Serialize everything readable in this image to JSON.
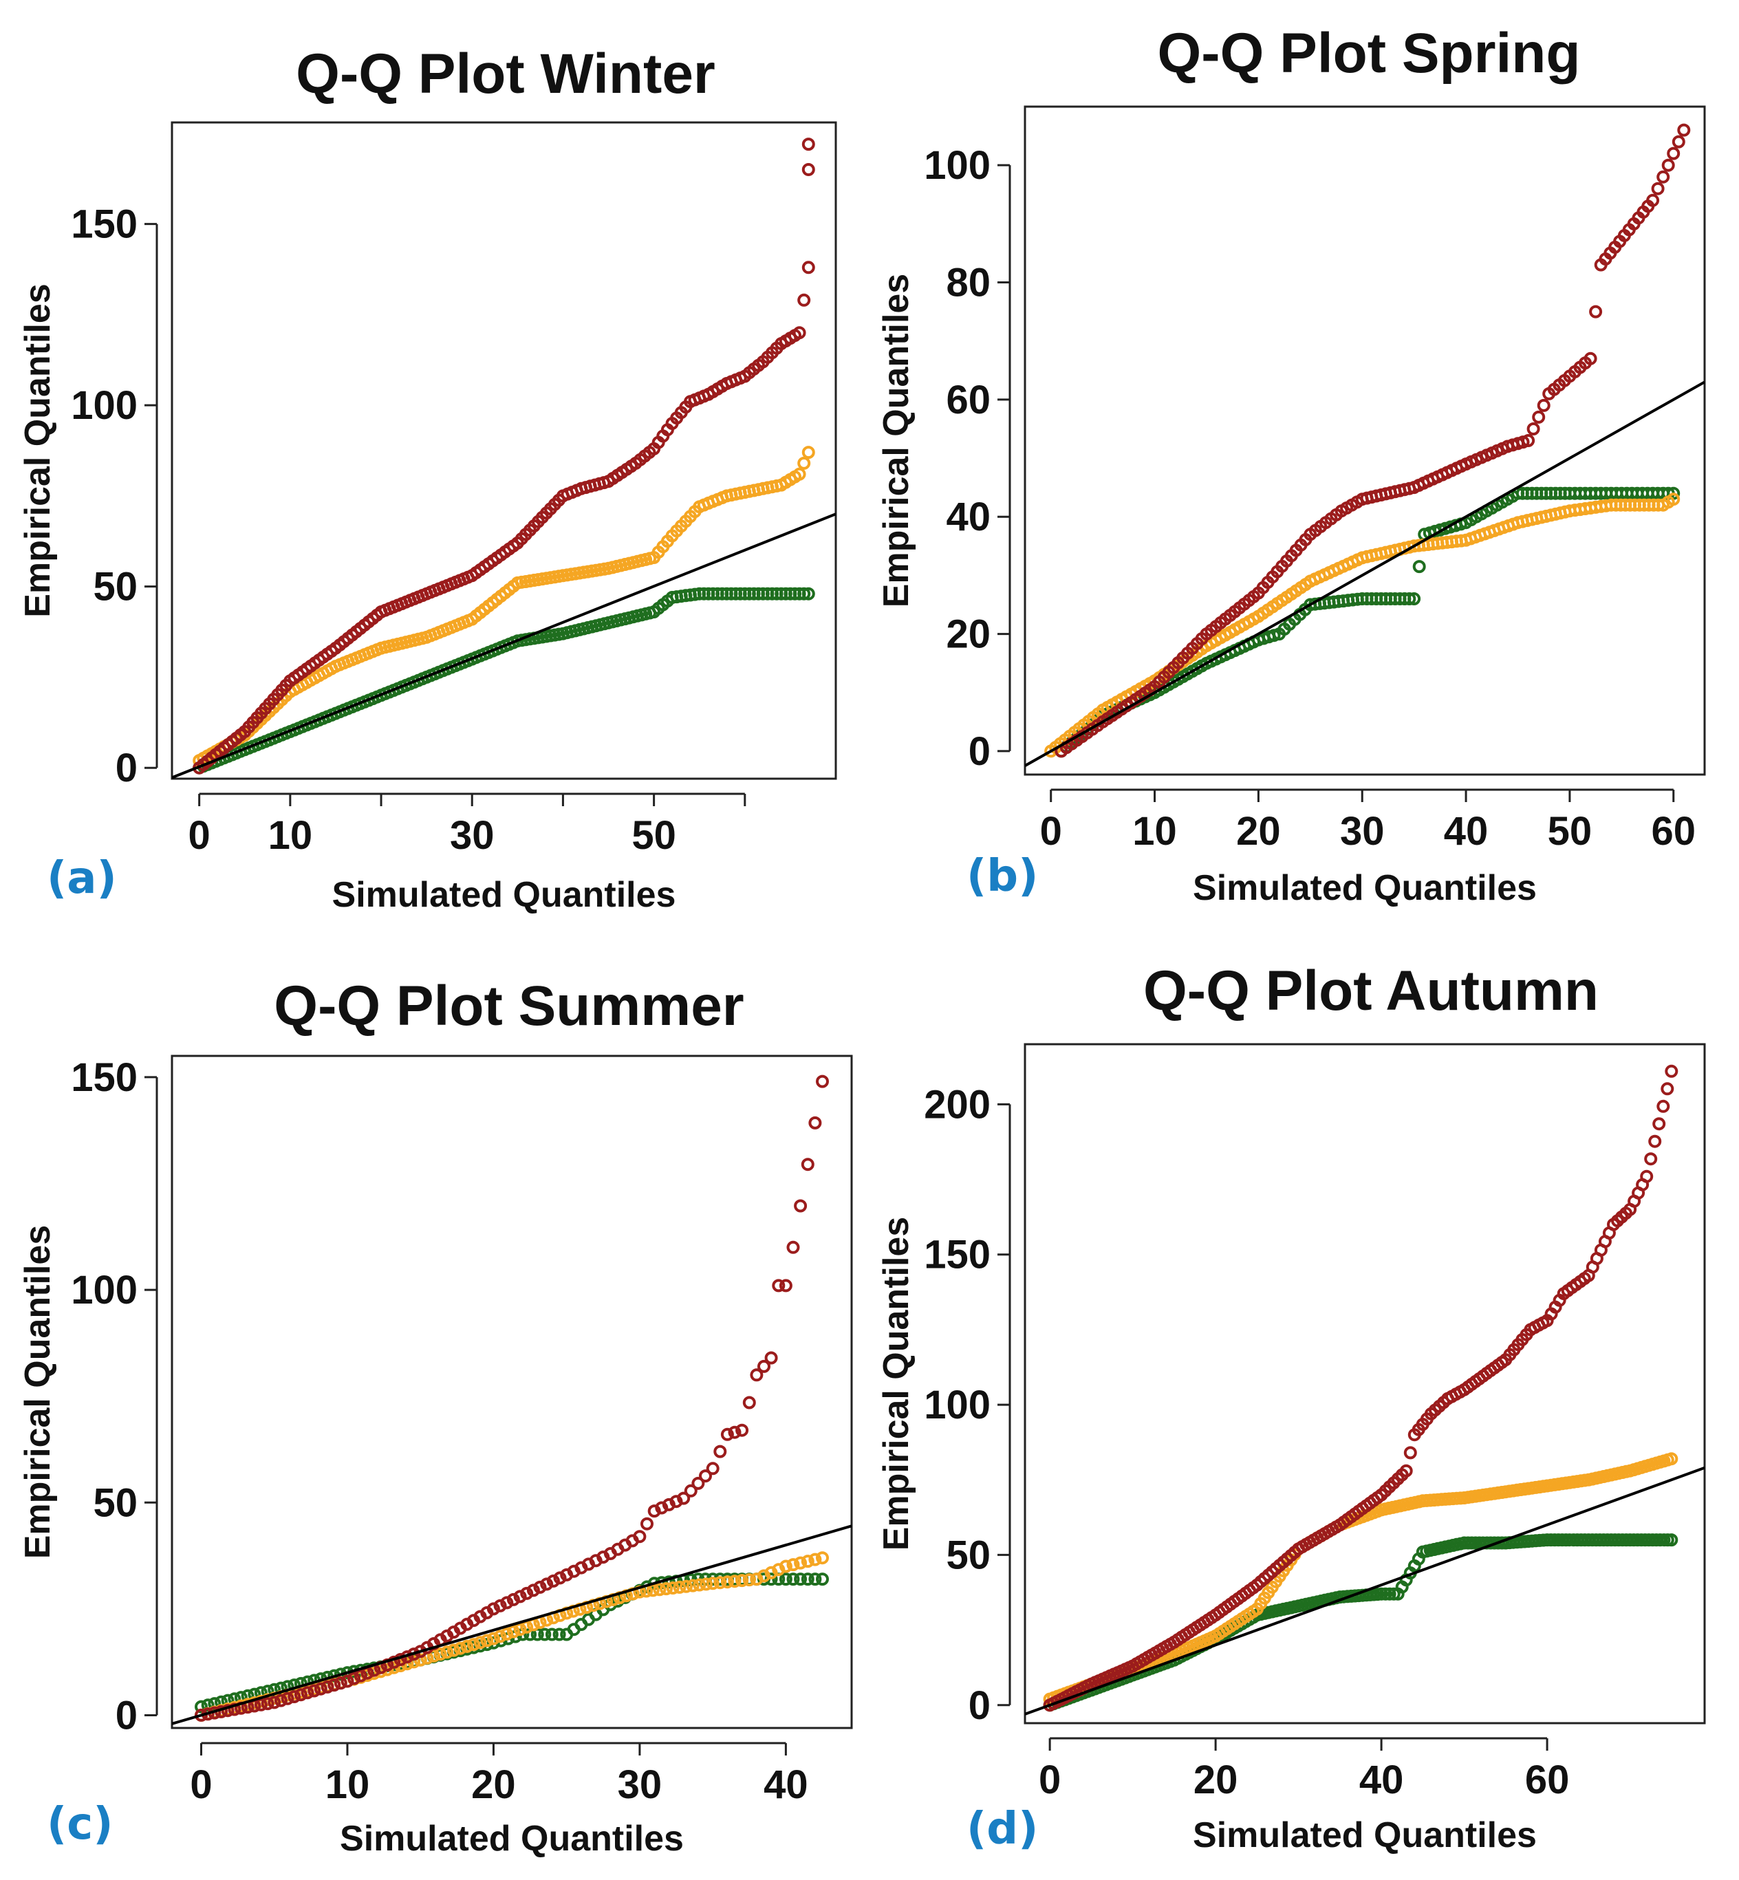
{
  "colors": {
    "dark_red": "#9b1c1c",
    "orange": "#f5a623",
    "green": "#1f6e1f",
    "reference_line": "#000000",
    "panel_letter": "#1a7fc4"
  },
  "chart_data": [
    {
      "type": "scatter",
      "panel": "(a)",
      "title": "Q-Q Plot Winter",
      "xlabel": "Simulated Quantiles",
      "ylabel": "Empirical Quantiles",
      "xlim": [
        -3,
        70
      ],
      "ylim": [
        -3,
        178
      ],
      "xticks": [
        0,
        10,
        20,
        30,
        40,
        50,
        60
      ],
      "xtick_labels": [
        "0",
        "10",
        "",
        "30",
        "",
        "50",
        ""
      ],
      "yticks": [
        0,
        50,
        100,
        150
      ],
      "ytick_labels": [
        "0",
        "50",
        "100",
        "150"
      ],
      "reference_line": [
        [
          -3,
          -2.7
        ],
        [
          70,
          70
        ]
      ],
      "series": [
        {
          "name": "dark red",
          "color_key": "dark_red",
          "x": [
            0,
            5,
            10,
            15,
            20,
            25,
            30,
            35,
            40,
            42,
            45,
            48,
            50,
            52,
            54,
            56,
            58,
            60,
            62,
            64,
            66,
            67,
            67,
            67
          ],
          "y": [
            0,
            10,
            24,
            33,
            43,
            48,
            53,
            62,
            75,
            77,
            79,
            84,
            88,
            95,
            101,
            103,
            106,
            108,
            112,
            117,
            120,
            138,
            165,
            172
          ]
        },
        {
          "name": "orange",
          "color_key": "orange",
          "x": [
            0,
            5,
            10,
            15,
            20,
            25,
            30,
            35,
            40,
            45,
            50,
            52,
            55,
            58,
            60,
            62,
            64,
            66,
            67
          ],
          "y": [
            2,
            9,
            21,
            28,
            33,
            36,
            41,
            51,
            53,
            55,
            58,
            64,
            72,
            75,
            76,
            77,
            78,
            81,
            87
          ]
        },
        {
          "name": "green",
          "color_key": "green",
          "x": [
            0,
            5,
            10,
            15,
            20,
            25,
            30,
            35,
            40,
            45,
            50,
            52,
            55,
            58,
            61,
            63,
            65,
            67
          ],
          "y": [
            0,
            5,
            10,
            15,
            20,
            25,
            30,
            35,
            37,
            40,
            43,
            47,
            48,
            48,
            48,
            48,
            48,
            48
          ]
        }
      ]
    },
    {
      "type": "scatter",
      "panel": "(b)",
      "title": "Q-Q Plot Spring",
      "xlabel": "Simulated Quantiles",
      "ylabel": "Empirical Quantiles",
      "xlim": [
        -2.5,
        63
      ],
      "ylim": [
        -4,
        110
      ],
      "xticks": [
        0,
        10,
        20,
        30,
        40,
        50,
        60
      ],
      "xtick_labels": [
        "0",
        "10",
        "20",
        "30",
        "40",
        "50",
        "60"
      ],
      "yticks": [
        0,
        20,
        40,
        60,
        80,
        100
      ],
      "ytick_labels": [
        "0",
        "20",
        "40",
        "60",
        "80",
        "100"
      ],
      "reference_line": [
        [
          -2.5,
          -2.5
        ],
        [
          63,
          63
        ]
      ],
      "series": [
        {
          "name": "dark red",
          "color_key": "dark_red",
          "x": [
            1,
            5,
            10,
            15,
            20,
            25,
            28,
            30,
            35,
            40,
            44,
            46,
            47,
            48,
            50,
            52,
            53,
            58,
            61
          ],
          "y": [
            0,
            5,
            11,
            20,
            27,
            37,
            41,
            43,
            45,
            49,
            52,
            53,
            57,
            61,
            64,
            67,
            83,
            94,
            106
          ]
        },
        {
          "name": "orange",
          "color_key": "orange",
          "x": [
            0,
            5,
            10,
            15,
            20,
            25,
            30,
            35,
            40,
            45,
            50,
            54,
            59,
            60
          ],
          "y": [
            0,
            7,
            12,
            18,
            23,
            29,
            33,
            35,
            36,
            39,
            41,
            42,
            42,
            43
          ]
        },
        {
          "name": "green",
          "color_key": "green",
          "x": [
            1,
            5,
            10,
            15,
            20,
            22,
            25,
            30,
            35,
            36,
            40,
            42,
            45,
            50,
            53,
            56,
            60
          ],
          "y": [
            0,
            6,
            10,
            15,
            19,
            20,
            25,
            26,
            26,
            37,
            39,
            41,
            44,
            44,
            44,
            44,
            44
          ]
        }
      ]
    },
    {
      "type": "scatter",
      "panel": "(c)",
      "title": "Q-Q Plot Summer",
      "xlabel": "Simulated Quantiles",
      "ylabel": "Empirical Quantiles",
      "xlim": [
        -2,
        44.5
      ],
      "ylim": [
        -3,
        155
      ],
      "xticks": [
        0,
        10,
        20,
        30,
        40
      ],
      "xtick_labels": [
        "0",
        "10",
        "20",
        "30",
        "40"
      ],
      "yticks": [
        0,
        50,
        100,
        150
      ],
      "ytick_labels": [
        "0",
        "50",
        "100",
        "150"
      ],
      "reference_line": [
        [
          -2,
          -2
        ],
        [
          44.5,
          44.5
        ]
      ],
      "series": [
        {
          "name": "dark red",
          "color_key": "dark_red",
          "x": [
            0,
            5,
            10,
            15,
            20,
            25,
            28,
            30,
            31,
            33,
            35,
            36,
            37,
            38,
            39,
            39.5,
            40,
            40.5,
            42.5
          ],
          "y": [
            0,
            3,
            8,
            15,
            25,
            33,
            38,
            42,
            48,
            51,
            58,
            66,
            67,
            80,
            84,
            101,
            101,
            110,
            149
          ]
        },
        {
          "name": "orange",
          "color_key": "orange",
          "x": [
            0,
            5,
            10,
            15,
            20,
            25,
            30,
            35,
            38,
            40,
            42.5
          ],
          "y": [
            0,
            4,
            8,
            13,
            18,
            24,
            29,
            31,
            32,
            35,
            37
          ]
        },
        {
          "name": "green",
          "color_key": "green",
          "x": [
            0,
            5,
            10,
            15,
            20,
            22,
            25,
            28,
            31,
            34,
            37,
            40,
            42.5
          ],
          "y": [
            2,
            6,
            10,
            13,
            17,
            19,
            19,
            26,
            31,
            32,
            32,
            32,
            32
          ]
        }
      ]
    },
    {
      "type": "scatter",
      "panel": "(d)",
      "title": "Q-Q Plot Autumn",
      "xlabel": "Simulated Quantiles",
      "ylabel": "Empirical Quantiles",
      "xlim": [
        -3,
        79
      ],
      "ylim": [
        -6,
        220
      ],
      "xticks": [
        0,
        20,
        40,
        60
      ],
      "xtick_labels": [
        "0",
        "20",
        "40",
        "60"
      ],
      "yticks": [
        0,
        50,
        100,
        150,
        200
      ],
      "ytick_labels": [
        "0",
        "50",
        "100",
        "150",
        "200"
      ],
      "reference_line": [
        [
          -3,
          -3
        ],
        [
          79,
          79
        ]
      ],
      "series": [
        {
          "name": "dark red",
          "color_key": "dark_red",
          "x": [
            0,
            5,
            10,
            15,
            20,
            25,
            30,
            35,
            40,
            43,
            44,
            46,
            48,
            50,
            55,
            58,
            60,
            62,
            65,
            68,
            70,
            72,
            75
          ],
          "y": [
            0,
            7,
            13,
            21,
            30,
            40,
            52,
            60,
            70,
            78,
            90,
            97,
            102,
            105,
            115,
            125,
            128,
            137,
            143,
            160,
            165,
            176,
            211
          ]
        },
        {
          "name": "orange",
          "color_key": "orange",
          "x": [
            0,
            5,
            10,
            15,
            20,
            25,
            30,
            35,
            40,
            45,
            50,
            55,
            60,
            65,
            70,
            75
          ],
          "y": [
            2,
            7,
            12,
            17,
            23,
            32,
            52,
            60,
            65,
            68,
            69,
            71,
            73,
            75,
            78,
            82
          ]
        },
        {
          "name": "green",
          "color_key": "green",
          "x": [
            0,
            5,
            10,
            15,
            20,
            25,
            30,
            35,
            40,
            42,
            45,
            50,
            55,
            60,
            65,
            70,
            75
          ],
          "y": [
            0,
            5,
            10,
            15,
            22,
            30,
            33,
            36,
            37,
            37,
            51,
            54,
            54,
            55,
            55,
            55,
            55
          ]
        }
      ]
    }
  ]
}
